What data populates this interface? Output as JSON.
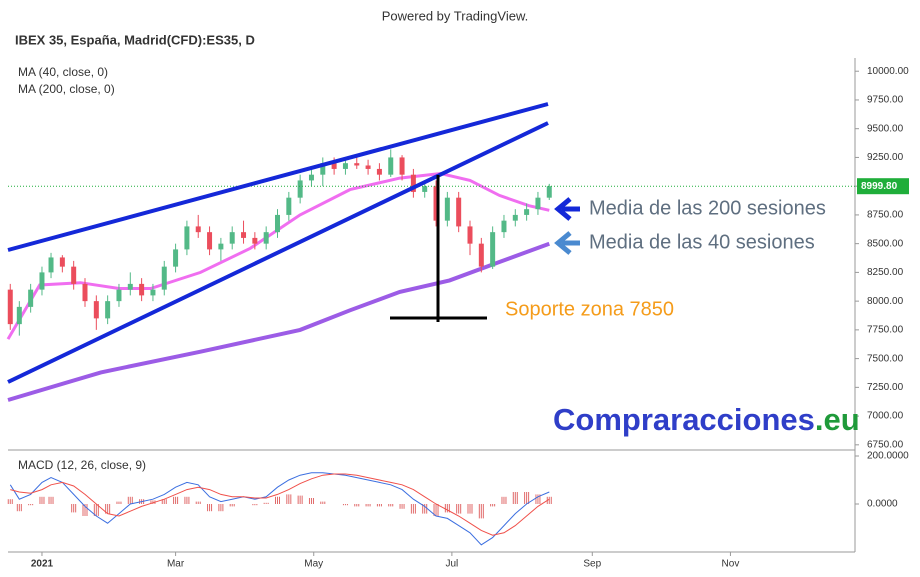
{
  "header": {
    "credit": "Powered by TradingView."
  },
  "chart_data": [
    {
      "type": "candlestick",
      "title": "IBEX 35, España, Madrid(CFD):ES35, D",
      "xlim": [
        -15,
        359
      ],
      "ylim": [
        6705,
        10115
      ],
      "yticks": [
        {
          "value": 6750,
          "label": "6750.00"
        },
        {
          "value": 7000,
          "label": "7000.00"
        },
        {
          "value": 7250,
          "label": "7250.00"
        },
        {
          "value": 7500,
          "label": "7500.00"
        },
        {
          "value": 7750,
          "label": "7750.00"
        },
        {
          "value": 8000,
          "label": "8000.00"
        },
        {
          "value": 8250,
          "label": "8250.00"
        },
        {
          "value": 8500,
          "label": "8500.00"
        },
        {
          "value": 8750,
          "label": "8750.00"
        },
        {
          "value": 9000,
          "label": "9000.00"
        },
        {
          "value": 9250,
          "label": "9250.00"
        },
        {
          "value": 9500,
          "label": "9500.00"
        },
        {
          "value": 9750,
          "label": "9750.00"
        },
        {
          "value": 10000,
          "label": "10000.00"
        }
      ],
      "x": [
        -14,
        -10,
        -5,
        0,
        4,
        9,
        14,
        19,
        24,
        29,
        34,
        39,
        44,
        49,
        54,
        59,
        64,
        69,
        74,
        79,
        84,
        89,
        94,
        99,
        104,
        109,
        114,
        119,
        124,
        129,
        134,
        139,
        144,
        149,
        154,
        159,
        164,
        169,
        174,
        179,
        184,
        189,
        194,
        199,
        204,
        209,
        214,
        219,
        224
      ],
      "open": [
        8100,
        7800,
        7950,
        8100,
        8250,
        8380,
        8300,
        8150,
        8000,
        7850,
        8000,
        8100,
        8150,
        8050,
        8100,
        8300,
        8450,
        8650,
        8600,
        8450,
        8500,
        8600,
        8550,
        8500,
        8600,
        8750,
        8900,
        9050,
        9100,
        9200,
        9150,
        9200,
        9180,
        9150,
        9100,
        9250,
        9100,
        8950,
        9000,
        8700,
        8900,
        8650,
        8500,
        8300,
        8600,
        8700,
        8750,
        8800,
        8900
      ],
      "high": [
        8150,
        8000,
        8150,
        8300,
        8420,
        8400,
        8350,
        8200,
        8050,
        8050,
        8150,
        8250,
        8200,
        8150,
        8350,
        8500,
        8700,
        8750,
        8650,
        8550,
        8650,
        8700,
        8600,
        8650,
        8800,
        8950,
        9100,
        9150,
        9250,
        9250,
        9250,
        9250,
        9230,
        9200,
        9320,
        9270,
        9150,
        9050,
        9050,
        8950,
        8950,
        8700,
        8550,
        8650,
        8750,
        8800,
        8850,
        8950,
        9020
      ],
      "low": [
        7750,
        7700,
        7900,
        8050,
        8200,
        8250,
        8100,
        7950,
        7750,
        7800,
        7950,
        8050,
        8000,
        8000,
        8050,
        8250,
        8400,
        8550,
        8400,
        8350,
        8450,
        8500,
        8450,
        8450,
        8550,
        8700,
        8850,
        9000,
        9000,
        9100,
        9100,
        9150,
        9100,
        9050,
        9080,
        9050,
        8900,
        8900,
        8650,
        8650,
        8600,
        8400,
        8250,
        8280,
        8550,
        8650,
        8700,
        8750,
        8880
      ],
      "close": [
        7800,
        7950,
        8100,
        8250,
        8380,
        8300,
        8150,
        8000,
        7850,
        8000,
        8100,
        8150,
        8050,
        8100,
        8300,
        8450,
        8650,
        8600,
        8450,
        8500,
        8600,
        8550,
        8500,
        8600,
        8750,
        8900,
        9050,
        9100,
        9200,
        9150,
        9200,
        9180,
        9150,
        9100,
        9250,
        9100,
        8950,
        9000,
        8700,
        8900,
        8650,
        8500,
        8300,
        8600,
        8700,
        8750,
        8800,
        8900,
        9000
      ],
      "up_color": "#53b987",
      "down_color": "#eb4d5c",
      "overlays": [
        {
          "name": "MA (40, close, 0)",
          "color": "#f06ef0",
          "x": [
            -15,
            -1,
            17,
            34,
            48,
            70,
            92,
            114,
            136,
            158,
            176,
            189,
            202,
            215,
            224
          ],
          "values": [
            7670,
            8140,
            8160,
            8110,
            8110,
            8250,
            8460,
            8750,
            8970,
            9070,
            9110,
            9050,
            8920,
            8830,
            8790
          ]
        },
        {
          "name": "MA (200, close, 0)",
          "color": "#9c5ce6",
          "x": [
            -15,
            26,
            70,
            114,
            136,
            158,
            180,
            202,
            224
          ],
          "values": [
            7140,
            7380,
            7560,
            7750,
            7920,
            8080,
            8180,
            8340,
            8500
          ]
        }
      ],
      "last_price": {
        "value": 8999.8,
        "label": "8999.80"
      },
      "annotations": [
        {
          "text": "Media de las 200 sesiones",
          "color": "#5f6f80"
        },
        {
          "text": "Media de las 40 sesiones",
          "color": "#5f6f80"
        },
        {
          "text": "Soporte zona 7850",
          "color": "#f59c1a"
        }
      ],
      "brand": {
        "name": "Compraracciones",
        "suffix": ".eu"
      }
    },
    {
      "type": "macd",
      "title": "MACD (12, 26, close, 9)",
      "xlim": [
        -15,
        359
      ],
      "ylim": [
        -200,
        225
      ],
      "xticks": [
        {
          "value": 0,
          "label": "2021"
        },
        {
          "value": 59,
          "label": "Mar"
        },
        {
          "value": 120,
          "label": "May"
        },
        {
          "value": 181,
          "label": "Jul"
        },
        {
          "value": 243,
          "label": "Sep"
        },
        {
          "value": 304,
          "label": "Nov"
        }
      ],
      "yticks": [
        {
          "value": 0,
          "label": "0.0000"
        },
        {
          "value": 200,
          "label": "200.0000"
        }
      ],
      "x": [
        -14,
        -10,
        -5,
        0,
        4,
        9,
        14,
        19,
        24,
        29,
        34,
        39,
        44,
        49,
        54,
        59,
        64,
        69,
        74,
        79,
        84,
        89,
        94,
        99,
        104,
        109,
        114,
        119,
        124,
        129,
        134,
        139,
        144,
        149,
        154,
        159,
        164,
        169,
        174,
        179,
        184,
        189,
        194,
        199,
        204,
        209,
        214,
        219,
        224
      ],
      "series": [
        {
          "color": "#3c6fe0",
          "values": [
            80,
            20,
            40,
            90,
            110,
            90,
            40,
            -10,
            -50,
            -80,
            -40,
            0,
            10,
            20,
            40,
            70,
            90,
            80,
            30,
            10,
            20,
            30,
            20,
            30,
            70,
            100,
            120,
            130,
            130,
            125,
            120,
            110,
            100,
            90,
            80,
            60,
            20,
            -10,
            -50,
            -60,
            -90,
            -120,
            -170,
            -140,
            -90,
            -40,
            0,
            30,
            50
          ]
        },
        {
          "color": "#f0504a",
          "values": [
            60,
            50,
            45,
            60,
            80,
            90,
            75,
            40,
            0,
            -40,
            -50,
            -30,
            -10,
            5,
            20,
            40,
            60,
            70,
            60,
            40,
            30,
            30,
            25,
            25,
            40,
            60,
            85,
            105,
            120,
            125,
            125,
            120,
            110,
            100,
            90,
            80,
            60,
            30,
            0,
            -25,
            -50,
            -80,
            -110,
            -130,
            -120,
            -90,
            -50,
            -10,
            20
          ]
        }
      ],
      "histogram": {
        "color": "#e06a6a",
        "values": [
          20,
          -30,
          -5,
          30,
          30,
          0,
          -35,
          -50,
          -50,
          -40,
          10,
          30,
          20,
          15,
          20,
          30,
          30,
          10,
          -30,
          -30,
          -10,
          0,
          -5,
          5,
          30,
          40,
          35,
          25,
          10,
          0,
          -5,
          -10,
          -10,
          -10,
          -10,
          -20,
          -40,
          -40,
          -50,
          -35,
          -40,
          -40,
          -60,
          -10,
          30,
          50,
          50,
          40,
          30
        ]
      }
    }
  ]
}
